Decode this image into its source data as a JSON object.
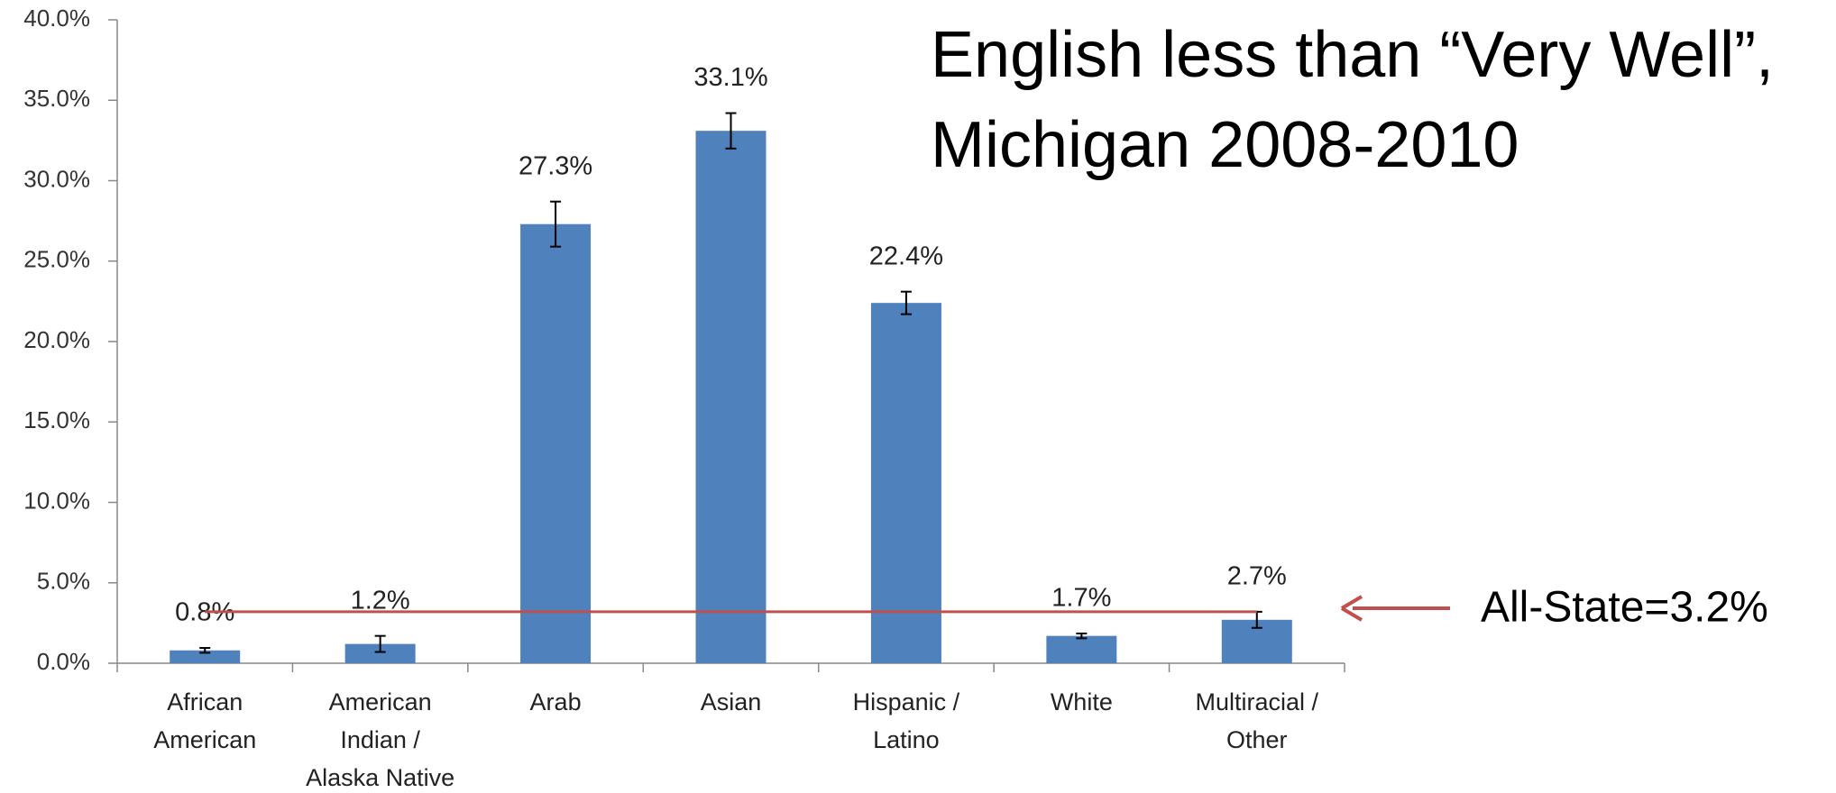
{
  "chart_data": {
    "type": "bar",
    "title": [
      "English less than “Very Well”,",
      "Michigan 2008-2010"
    ],
    "categories": [
      [
        "African",
        "American"
      ],
      [
        "American",
        "Indian /",
        "Alaska Native"
      ],
      [
        "Arab"
      ],
      [
        "Asian"
      ],
      [
        "Hispanic /",
        "Latino"
      ],
      [
        "White"
      ],
      [
        "Multiracial /",
        "Other"
      ]
    ],
    "values": [
      0.8,
      1.2,
      27.3,
      33.1,
      22.4,
      1.7,
      2.7
    ],
    "value_labels": [
      "0.8%",
      "1.2%",
      "27.3%",
      "33.1%",
      "22.4%",
      "1.7%",
      "2.7%"
    ],
    "errors": [
      0.15,
      0.5,
      1.4,
      1.1,
      0.7,
      0.15,
      0.5
    ],
    "color": "#4f81bd",
    "ylim": [
      0,
      40
    ],
    "yticks": [
      {
        "value": 0,
        "label": "0.0%"
      },
      {
        "value": 5,
        "label": "5.0%"
      },
      {
        "value": 10,
        "label": "10.0%"
      },
      {
        "value": 15,
        "label": "15.0%"
      },
      {
        "value": 20,
        "label": "20.0%"
      },
      {
        "value": 25,
        "label": "25.0%"
      },
      {
        "value": 30,
        "label": "30.0%"
      },
      {
        "value": 35,
        "label": "35.0%"
      },
      {
        "value": 40,
        "label": "40.0%"
      }
    ],
    "reference_line": {
      "value": 3.2,
      "label": "All-State=3.2%",
      "color": "#c0504d"
    }
  }
}
